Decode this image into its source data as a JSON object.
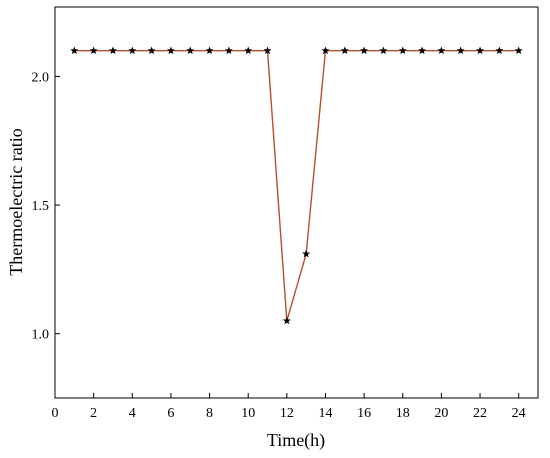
{
  "chart_data": {
    "type": "line",
    "xlabel": "Time(h)",
    "ylabel": "Thermoelectric ratio",
    "xlim": [
      0,
      25
    ],
    "ylim": [
      0.75,
      2.27
    ],
    "xticks": [
      0,
      2,
      4,
      6,
      8,
      10,
      12,
      14,
      16,
      18,
      20,
      22,
      24
    ],
    "yticks": [
      1.0,
      1.5,
      2.0
    ],
    "ytick_labels": [
      "1.0",
      "1.5",
      "2.0"
    ],
    "grid": false,
    "series": [
      {
        "line_color": "#b5502a",
        "marker": "star",
        "marker_color": "#000000",
        "x": [
          1,
          2,
          3,
          4,
          5,
          6,
          7,
          8,
          9,
          10,
          11,
          12,
          13,
          14,
          15,
          16,
          17,
          18,
          19,
          20,
          21,
          22,
          23,
          24
        ],
        "y": [
          2.1,
          2.1,
          2.1,
          2.1,
          2.1,
          2.1,
          2.1,
          2.1,
          2.1,
          2.1,
          2.1,
          1.05,
          1.31,
          2.1,
          2.1,
          2.1,
          2.1,
          2.1,
          2.1,
          2.1,
          2.1,
          2.1,
          2.1,
          2.1
        ]
      }
    ]
  }
}
